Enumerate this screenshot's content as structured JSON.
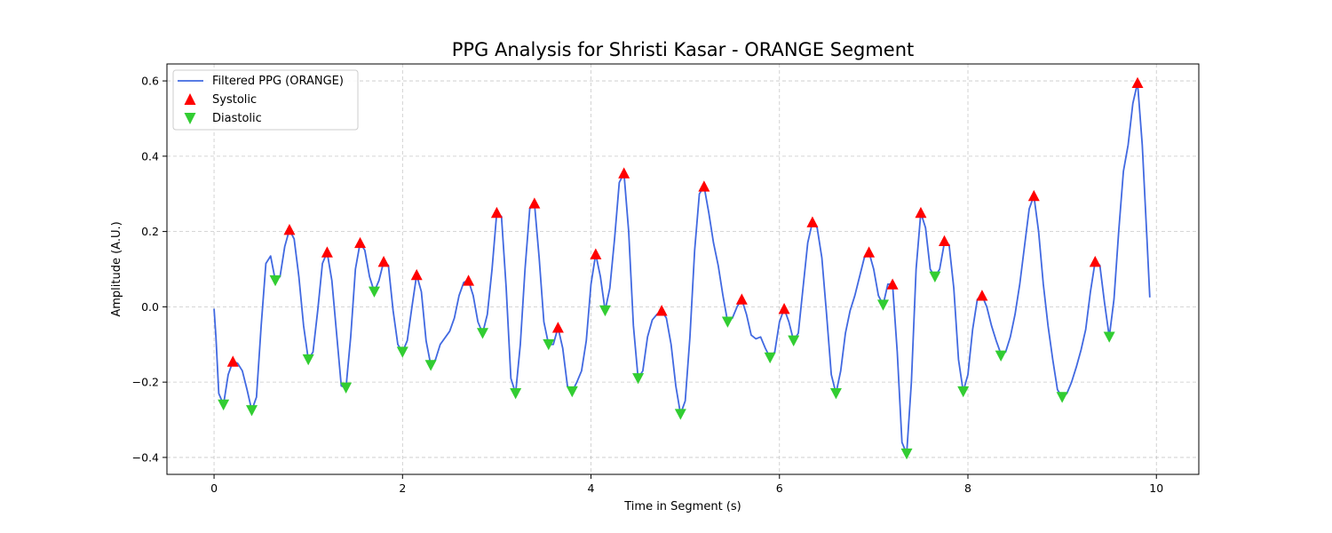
{
  "chart_data": {
    "type": "line",
    "title": "PPG Analysis for Shristi Kasar - ORANGE Segment",
    "xlabel": "Time in Segment (s)",
    "ylabel": "Amplitude (A.U.)",
    "xlim": [
      -0.5,
      10.45
    ],
    "ylim": [
      -0.445,
      0.645
    ],
    "x_ticks": [
      0,
      2,
      4,
      6,
      8,
      10
    ],
    "y_ticks": [
      -0.4,
      -0.2,
      0.0,
      0.2,
      0.4,
      0.6
    ],
    "grid": true,
    "legend_position": "top-left",
    "series": [
      {
        "name": "Filtered PPG (ORANGE)",
        "kind": "line",
        "color": "#4169e1",
        "points": [
          [
            0.0,
            -0.005
          ],
          [
            0.02,
            -0.08
          ],
          [
            0.05,
            -0.23
          ],
          [
            0.1,
            -0.26
          ],
          [
            0.15,
            -0.18
          ],
          [
            0.2,
            -0.145
          ],
          [
            0.25,
            -0.15
          ],
          [
            0.3,
            -0.17
          ],
          [
            0.35,
            -0.22
          ],
          [
            0.4,
            -0.275
          ],
          [
            0.45,
            -0.24
          ],
          [
            0.5,
            -0.05
          ],
          [
            0.55,
            0.115
          ],
          [
            0.6,
            0.135
          ],
          [
            0.65,
            0.07
          ],
          [
            0.7,
            0.08
          ],
          [
            0.75,
            0.16
          ],
          [
            0.8,
            0.205
          ],
          [
            0.85,
            0.18
          ],
          [
            0.9,
            0.08
          ],
          [
            0.95,
            -0.05
          ],
          [
            1.0,
            -0.14
          ],
          [
            1.05,
            -0.12
          ],
          [
            1.1,
            -0.01
          ],
          [
            1.15,
            0.115
          ],
          [
            1.2,
            0.145
          ],
          [
            1.25,
            0.07
          ],
          [
            1.3,
            -0.07
          ],
          [
            1.35,
            -0.21
          ],
          [
            1.4,
            -0.215
          ],
          [
            1.45,
            -0.08
          ],
          [
            1.5,
            0.1
          ],
          [
            1.55,
            0.17
          ],
          [
            1.6,
            0.15
          ],
          [
            1.65,
            0.08
          ],
          [
            1.7,
            0.04
          ],
          [
            1.75,
            0.07
          ],
          [
            1.8,
            0.12
          ],
          [
            1.85,
            0.11
          ],
          [
            1.9,
            -0.01
          ],
          [
            1.95,
            -0.1
          ],
          [
            2.0,
            -0.12
          ],
          [
            2.05,
            -0.09
          ],
          [
            2.1,
            0.0
          ],
          [
            2.15,
            0.085
          ],
          [
            2.2,
            0.04
          ],
          [
            2.25,
            -0.09
          ],
          [
            2.3,
            -0.155
          ],
          [
            2.35,
            -0.14
          ],
          [
            2.4,
            -0.1
          ],
          [
            2.5,
            -0.065
          ],
          [
            2.55,
            -0.03
          ],
          [
            2.6,
            0.03
          ],
          [
            2.65,
            0.065
          ],
          [
            2.7,
            0.07
          ],
          [
            2.75,
            0.03
          ],
          [
            2.8,
            -0.04
          ],
          [
            2.85,
            -0.07
          ],
          [
            2.9,
            -0.02
          ],
          [
            2.95,
            0.1
          ],
          [
            3.0,
            0.25
          ],
          [
            3.05,
            0.24
          ],
          [
            3.1,
            0.05
          ],
          [
            3.15,
            -0.19
          ],
          [
            3.2,
            -0.23
          ],
          [
            3.25,
            -0.1
          ],
          [
            3.3,
            0.1
          ],
          [
            3.35,
            0.26
          ],
          [
            3.4,
            0.275
          ],
          [
            3.45,
            0.13
          ],
          [
            3.5,
            -0.04
          ],
          [
            3.55,
            -0.1
          ],
          [
            3.6,
            -0.1
          ],
          [
            3.65,
            -0.055
          ],
          [
            3.7,
            -0.11
          ],
          [
            3.75,
            -0.21
          ],
          [
            3.8,
            -0.225
          ],
          [
            3.85,
            -0.2
          ],
          [
            3.9,
            -0.17
          ],
          [
            3.95,
            -0.09
          ],
          [
            4.0,
            0.06
          ],
          [
            4.05,
            0.14
          ],
          [
            4.1,
            0.08
          ],
          [
            4.15,
            -0.01
          ],
          [
            4.2,
            0.05
          ],
          [
            4.25,
            0.18
          ],
          [
            4.3,
            0.33
          ],
          [
            4.35,
            0.355
          ],
          [
            4.4,
            0.2
          ],
          [
            4.45,
            -0.05
          ],
          [
            4.5,
            -0.19
          ],
          [
            4.55,
            -0.17
          ],
          [
            4.6,
            -0.08
          ],
          [
            4.65,
            -0.035
          ],
          [
            4.7,
            -0.02
          ],
          [
            4.75,
            -0.01
          ],
          [
            4.8,
            -0.03
          ],
          [
            4.85,
            -0.1
          ],
          [
            4.9,
            -0.21
          ],
          [
            4.95,
            -0.285
          ],
          [
            5.0,
            -0.25
          ],
          [
            5.05,
            -0.08
          ],
          [
            5.1,
            0.15
          ],
          [
            5.15,
            0.3
          ],
          [
            5.2,
            0.32
          ],
          [
            5.25,
            0.25
          ],
          [
            5.3,
            0.17
          ],
          [
            5.35,
            0.11
          ],
          [
            5.4,
            0.03
          ],
          [
            5.45,
            -0.04
          ],
          [
            5.5,
            -0.03
          ],
          [
            5.55,
            0.0
          ],
          [
            5.6,
            0.02
          ],
          [
            5.65,
            -0.02
          ],
          [
            5.7,
            -0.075
          ],
          [
            5.75,
            -0.085
          ],
          [
            5.8,
            -0.08
          ],
          [
            5.85,
            -0.11
          ],
          [
            5.9,
            -0.135
          ],
          [
            5.95,
            -0.12
          ],
          [
            6.0,
            -0.04
          ],
          [
            6.05,
            -0.005
          ],
          [
            6.1,
            -0.04
          ],
          [
            6.15,
            -0.09
          ],
          [
            6.2,
            -0.07
          ],
          [
            6.25,
            0.05
          ],
          [
            6.3,
            0.17
          ],
          [
            6.35,
            0.225
          ],
          [
            6.4,
            0.21
          ],
          [
            6.45,
            0.13
          ],
          [
            6.5,
            -0.02
          ],
          [
            6.55,
            -0.18
          ],
          [
            6.6,
            -0.23
          ],
          [
            6.65,
            -0.17
          ],
          [
            6.7,
            -0.07
          ],
          [
            6.75,
            -0.01
          ],
          [
            6.8,
            0.03
          ],
          [
            6.85,
            0.08
          ],
          [
            6.9,
            0.13
          ],
          [
            6.95,
            0.145
          ],
          [
            7.0,
            0.1
          ],
          [
            7.05,
            0.03
          ],
          [
            7.1,
            0.005
          ],
          [
            7.15,
            0.06
          ],
          [
            7.2,
            0.06
          ],
          [
            7.25,
            -0.12
          ],
          [
            7.3,
            -0.36
          ],
          [
            7.35,
            -0.39
          ],
          [
            7.4,
            -0.2
          ],
          [
            7.45,
            0.1
          ],
          [
            7.5,
            0.25
          ],
          [
            7.55,
            0.21
          ],
          [
            7.6,
            0.1
          ],
          [
            7.65,
            0.08
          ],
          [
            7.7,
            0.1
          ],
          [
            7.75,
            0.17
          ],
          [
            7.8,
            0.165
          ],
          [
            7.85,
            0.05
          ],
          [
            7.9,
            -0.14
          ],
          [
            7.95,
            -0.225
          ],
          [
            8.0,
            -0.18
          ],
          [
            8.05,
            -0.06
          ],
          [
            8.1,
            0.02
          ],
          [
            8.15,
            0.03
          ],
          [
            8.2,
            0.0
          ],
          [
            8.25,
            -0.05
          ],
          [
            8.3,
            -0.09
          ],
          [
            8.35,
            -0.125
          ],
          [
            8.4,
            -0.12
          ],
          [
            8.45,
            -0.08
          ],
          [
            8.5,
            -0.02
          ],
          [
            8.55,
            0.06
          ],
          [
            8.6,
            0.16
          ],
          [
            8.65,
            0.26
          ],
          [
            8.7,
            0.295
          ],
          [
            8.75,
            0.2
          ],
          [
            8.8,
            0.06
          ],
          [
            8.85,
            -0.05
          ],
          [
            8.9,
            -0.14
          ],
          [
            8.95,
            -0.22
          ],
          [
            9.0,
            -0.24
          ],
          [
            9.05,
            -0.23
          ],
          [
            9.1,
            -0.2
          ],
          [
            9.15,
            -0.16
          ],
          [
            9.2,
            -0.115
          ],
          [
            9.25,
            -0.06
          ],
          [
            9.3,
            0.04
          ],
          [
            9.35,
            0.12
          ],
          [
            9.4,
            0.11
          ],
          [
            9.45,
            0.01
          ],
          [
            9.5,
            -0.08
          ],
          [
            9.55,
            0.02
          ],
          [
            9.6,
            0.2
          ],
          [
            9.65,
            0.36
          ],
          [
            9.7,
            0.43
          ],
          [
            9.75,
            0.54
          ],
          [
            9.8,
            0.595
          ],
          [
            9.85,
            0.43
          ],
          [
            9.9,
            0.18
          ],
          [
            9.93,
            0.025
          ]
        ]
      },
      {
        "name": "Systolic",
        "kind": "marker",
        "marker": "triangle-up",
        "color": "#ff0000",
        "points": [
          [
            0.2,
            -0.145
          ],
          [
            0.8,
            0.205
          ],
          [
            1.2,
            0.145
          ],
          [
            1.55,
            0.17
          ],
          [
            1.8,
            0.12
          ],
          [
            2.15,
            0.085
          ],
          [
            2.7,
            0.07
          ],
          [
            3.0,
            0.25
          ],
          [
            3.4,
            0.275
          ],
          [
            3.65,
            -0.055
          ],
          [
            4.05,
            0.14
          ],
          [
            4.35,
            0.355
          ],
          [
            4.75,
            -0.01
          ],
          [
            5.2,
            0.32
          ],
          [
            5.6,
            0.02
          ],
          [
            6.05,
            -0.005
          ],
          [
            6.35,
            0.225
          ],
          [
            6.95,
            0.145
          ],
          [
            7.2,
            0.06
          ],
          [
            7.5,
            0.25
          ],
          [
            7.75,
            0.175
          ],
          [
            8.15,
            0.03
          ],
          [
            8.7,
            0.295
          ],
          [
            9.35,
            0.12
          ],
          [
            9.8,
            0.595
          ]
        ]
      },
      {
        "name": "Diastolic",
        "kind": "marker",
        "marker": "triangle-down",
        "color": "#32cd32",
        "points": [
          [
            0.1,
            -0.26
          ],
          [
            0.4,
            -0.275
          ],
          [
            0.65,
            0.07
          ],
          [
            1.0,
            -0.14
          ],
          [
            1.4,
            -0.215
          ],
          [
            1.7,
            0.04
          ],
          [
            2.0,
            -0.12
          ],
          [
            2.3,
            -0.155
          ],
          [
            2.85,
            -0.07
          ],
          [
            3.2,
            -0.23
          ],
          [
            3.55,
            -0.1
          ],
          [
            3.8,
            -0.225
          ],
          [
            4.15,
            -0.01
          ],
          [
            4.5,
            -0.19
          ],
          [
            4.95,
            -0.285
          ],
          [
            5.45,
            -0.04
          ],
          [
            5.9,
            -0.135
          ],
          [
            6.15,
            -0.09
          ],
          [
            6.6,
            -0.23
          ],
          [
            7.1,
            0.005
          ],
          [
            7.35,
            -0.39
          ],
          [
            7.65,
            0.08
          ],
          [
            7.95,
            -0.225
          ],
          [
            8.35,
            -0.13
          ],
          [
            9.0,
            -0.24
          ],
          [
            9.5,
            -0.08
          ]
        ]
      }
    ]
  }
}
